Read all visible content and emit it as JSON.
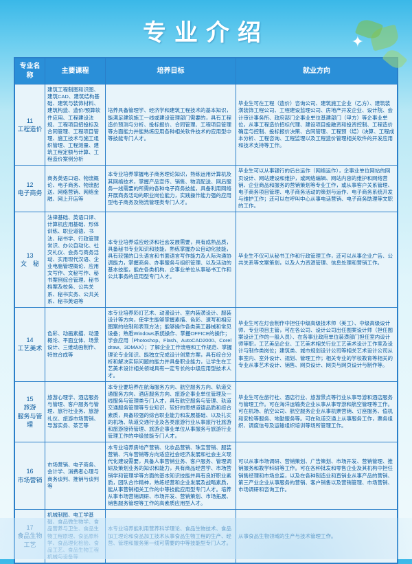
{
  "page_title": "专业介绍",
  "headers": [
    "专业名称",
    "主要课程",
    "培养目标",
    "就业方向"
  ],
  "rows": [
    {
      "name": "11\n工程造价",
      "courses": "建筑工程制图和识图、建筑CAD、建筑结构基础、建筑与装饰材料、建筑构造、造价/预算软件应用、工程建设法规、工程项目招投标及合同管理、工程项目管理、施工技术与施工组织管理、工程测量、建筑工程定额与计算、工程造价案例分析",
      "goal": "培养具备管理学、经济学和建筑工程技术的基本知识，能满足建筑施工一线或建设管理部门需要的，具有工程造价预测与分析、投标报价、合同管理、工程项目管理等方面能力并能熟练应用各种相关软件技术的应用型中等技能专门人才。",
      "career": "毕业生可在工程（造价）咨询公司、建筑施工企业（乙方）、建筑装潢装饰工程公司、工程建设监理公司、房地产开发企业、设计院、会计审计事务所、政府部门企事业单位基建部门（甲方）等企事业单位，从事工程造价招标代理、建设项目投融资和投资控制、工程造价确定与控制、投标报价决策、合同管理、工程预（结）/决算、工程成本分析、工程咨询、工程监理以及工程造价管理相关软件的开发应用和技术支持等工作。"
    },
    {
      "name": "12\n电子商务",
      "courses": "商务英语口语、物流概论、电子商务、物流配送、网络营销、网络金融、网上开店等",
      "goal": "本专业培养掌握电子商务理论知识，熟练运用计算机及其网络技术，掌握产品宣传、销售、物流配送、网后服务一线需要的所需的各种电子商务技能，具备利用网络开展商务活动的职业岗位能力，实践操作能力强的应用型电子商务及物流管理类专门人才。",
      "career": "毕业生可以从事银行的后台运作（网络运作），企事业单位网站的网页设计、网站建设和维护，或网络编辑、网站内容的维护和网络营销、企业商品和服务的营销策划等专业工作，或从事客户关系管理、电子商务项目管理、电子商务活动的策划与运作、电子商务系统开发与维护工作；还可以在呼叫中心从事电话营销、电子商务助理等文职的工作。"
    },
    {
      "name": "13\n文　秘",
      "courses": "法律基础、英语口译、计算机应用基础、形体训练、职业道德、书法、秘书学、行政管理常识、办公自动化、社交礼仪、会务与商务活动、实用现代汉语、企业电脑管理概论、应用文写作、文秘写作、秘书案例综合管理、秘书档案及校务、公共关系、秘书实务、公共关系、秘书英语等",
      "goal": "本专业培养适应经济和社会发展需要，具有成熟品质，具备秘书专业知识和技能，熟练掌握办公自动化技能，具有较强的口头语言和书面语言写作能力及人际沟通协调能力，掌握商务、办事服务与组织管理、以及活动的基本技能，能在各类机构、企事业单位从事秘书工作和公共事务的应用型专门人才。",
      "career": "毕业生不仅可从秘书工作和行政管理工作，还可以从事企业广告、公共关系等文案策划，以及人力资源管理、信息处理和营销工作。"
    },
    {
      "name": "14\n工艺美术",
      "courses": "色彩、动画素描、动漫概论、平面立体、场景设计、三维动画制作、特效合成等",
      "goal": "本专业培养彩灯艺术、动漫设计、室内装潢设计、服装设计等方向，使学生能够掌握素描、色彩、速写和相应图案的绘制和表现方法；能够操作各类美工器械和常见设备；熟悉Windows系统操作、掌握OFFICE的操作；学会应用（Photoshop、Flash、AutoCAD2000、Coreldraw、3DMAX）；了解企业工作流程和工作规范、掌握理论专业知识、能独立完成设计创意方案，具有综合分析和解决实际问题的能力并具备职业能力，让学生在工艺美术设计相关领域具有一定专长的中级应用型技术人才。",
      "career": "毕业生可在灯会制作中担任中级高级技术师（美工）、中级高级设计师、专业项目主管，可在各公司、设计公司出任图案设计师（担任图案设计工作的一般人员）、在各事业政府单位装潢部门担任室内设计师等职，工艺美品企业、工艺美术相关行业工艺美术设计工作室及设计与制作类岗位；建筑类、城市规划设计公司等相关艺术设计公司从事室内、室外设计、规划、管理工作；相关专业的学校教育等相关的专业从事艺术设计、销售、网页设计、网页与网页设计与制作等。"
    },
    {
      "name": "15\n旅游\n服务与管理",
      "courses": "旅游心理学、酒店服务与管理、客户服务与管理、旅行社业务、旅游礼仪、旅游市场营销、导游实务、茶艺等",
      "goal": "本专业要培养在航海服务方向、航空服务方向、轨道交通服务方向、酒店服务方向、旅游企事业单位管理及一线服务与管理类专门人才，具有航空服务与管理、轨道交通服务管理等专业知识，较好的思想道德品质和综合素质，具备较强的综合职业能力和发展基础、以及扎实的机场、轨道交通行业及各类旅游行业从事旅行社旅游和旅游接待管理、旅游企事业单位从事服务与旅游行业管理工作的中级技能专门人才。",
      "career": "毕业生可在旅行社、酒店行业、旅游景点等行业从事导游和酒店服务与管理工作。可在海洋运输类企业从事从事导游和航空管理等工作。可在机场、航空公司、航空服务企业从事机票营销、订座服务、值机和安检等服务、地勤服务等。可在轨道交通上从事服务工作，票务组织、调度信号及运输组织培训等场所管理工作。"
    },
    {
      "name": "16\n市场营销",
      "courses": "市场营销、电子商务、会计学、消费者心理与商务谈判、推销与谈判等",
      "goal": "本专业培养房地产营销、化妆品营销、珠宝营销、服装营销、汽车营销等方向适应社会经济发展和社会主义现代化建设需要，具备人事营销业务、客户服务、管理调研及策划业务的知识和能力，具有商品经营学、市场营销学和管理学等方面的基本知识技能并具有良好职业素质，团队合作精神，熟练经营和企业发展及战略素质，能从事营销相关工作的中等技能应用型专门人才。培养从事市场营销调研、市场开发、营销策划、市场拓展、销售服务管理等工作的高素质应用型人才。",
      "career": "可以从事市场调研、营销策划、广告策划、市场开发、营销管理、推销服务和教学科研等工作。可在各种批发和零售企业及其机构中担任销售经理和市场总监，以及在各种制造业和直销业从事产品的营销、第三产业企业从事服务的营销、客户销售以及营销管理、市场营销、市场调研和咨询工作。"
    },
    {
      "name": "17\n食品生物工艺",
      "courses": "机械制图、电工学基础、食品微生物学、食品营养与卫生、食品生物工程原理、食品原料学、食品理化检验、食品工艺、食品生物工程机械与设备等",
      "goal": "本专业培养能利用营养科学理论、食品生物技术、食品加工理论和食品加工技术从事食品生物工程的生产、经营、管理和服务第一线可需要的中等技能型专门人才。",
      "career": "从事食品生物领域的生产与技术管理工作。"
    }
  ]
}
